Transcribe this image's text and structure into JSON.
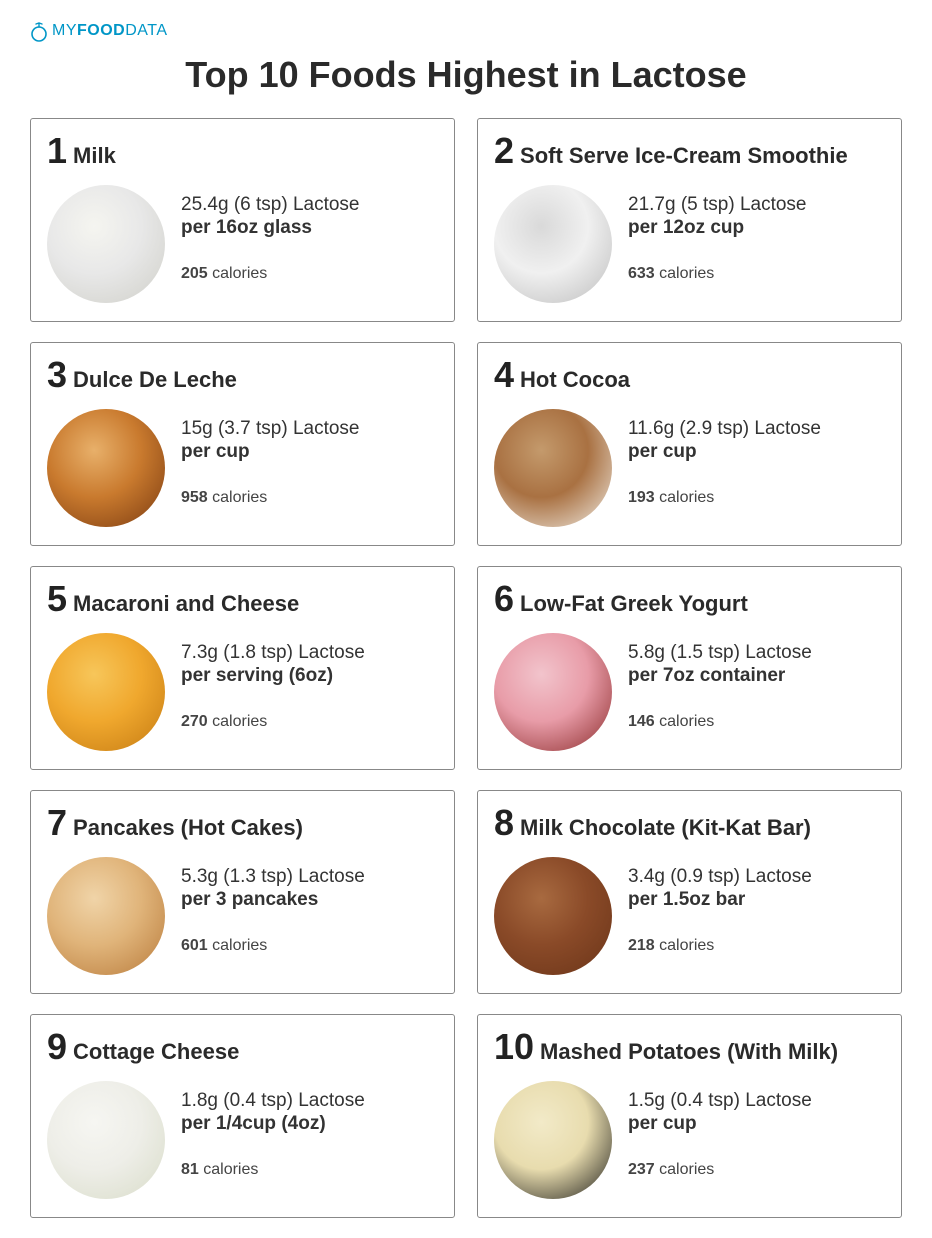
{
  "logo": {
    "my": "MY",
    "food": "FOOD",
    "data": "DATA",
    "icon_color": "#0096c7"
  },
  "title": "Top 10 Foods Highest in Lactose",
  "items": [
    {
      "rank": "1",
      "name": "Milk",
      "lactose": "25.4g (6 tsp) Lactose",
      "serving": "per 16oz glass",
      "calories_num": "205",
      "calories_label": " calories",
      "colors": [
        "#e8e8e8",
        "#f5f5f0",
        "#cfcfc8"
      ]
    },
    {
      "rank": "2",
      "name": "Soft Serve Ice-Cream Smoothie",
      "lactose": "21.7g (5 tsp) Lactose",
      "serving": "per 12oz cup",
      "calories_num": "633",
      "calories_label": " calories",
      "colors": [
        "#f0f0f0",
        "#d9d9d9",
        "#bcbcbc"
      ]
    },
    {
      "rank": "3",
      "name": "Dulce De Leche",
      "lactose": "15g (3.7 tsp) Lactose",
      "serving": "per cup",
      "calories_num": "958",
      "calories_label": " calories",
      "colors": [
        "#c97a2e",
        "#e8b06a",
        "#7a3a10"
      ]
    },
    {
      "rank": "4",
      "name": "Hot Cocoa",
      "lactose": "11.6g (2.9 tsp) Lactose",
      "serving": "per cup",
      "calories_num": "193",
      "calories_label": " calories",
      "colors": [
        "#a97142",
        "#c49a6c",
        "#f2eee6"
      ]
    },
    {
      "rank": "5",
      "name": "Macaroni and Cheese",
      "lactose": "7.3g (1.8 tsp) Lactose",
      "serving": "per serving (6oz)",
      "calories_num": "270",
      "calories_label": " calories",
      "colors": [
        "#f0a82e",
        "#f7c65a",
        "#c47a12"
      ]
    },
    {
      "rank": "6",
      "name": "Low-Fat Greek Yogurt",
      "lactose": "5.8g (1.5 tsp) Lactose",
      "serving": "per 7oz container",
      "calories_num": "146",
      "calories_label": " calories",
      "colors": [
        "#e89ca8",
        "#f2c4cc",
        "#8a2a2a"
      ]
    },
    {
      "rank": "7",
      "name": "Pancakes (Hot Cakes)",
      "lactose": "5.3g (1.3 tsp) Lactose",
      "serving": "per 3 pancakes",
      "calories_num": "601",
      "calories_label": " calories",
      "colors": [
        "#e0b47a",
        "#f0d4a8",
        "#b87a3a"
      ]
    },
    {
      "rank": "8",
      "name": "Milk Chocolate (Kit-Kat Bar)",
      "lactose": "3.4g (0.9 tsp) Lactose",
      "serving": "per 1.5oz bar",
      "calories_num": "218",
      "calories_label": " calories",
      "colors": [
        "#8a4a28",
        "#a86a40",
        "#6a3418"
      ]
    },
    {
      "rank": "9",
      "name": "Cottage Cheese",
      "lactose": "1.8g (0.4 tsp) Lactose",
      "serving": "per 1/4cup (4oz)",
      "calories_num": "81",
      "calories_label": " calories",
      "colors": [
        "#eeeee8",
        "#f6f6f2",
        "#d8dcc8"
      ]
    },
    {
      "rank": "10",
      "name": "Mashed Potatoes (With Milk)",
      "lactose": "1.5g (0.4 tsp) Lactose",
      "serving": "per cup",
      "calories_num": "237",
      "calories_label": " calories",
      "colors": [
        "#e8dcae",
        "#f2eac8",
        "#1a1a18"
      ]
    }
  ]
}
